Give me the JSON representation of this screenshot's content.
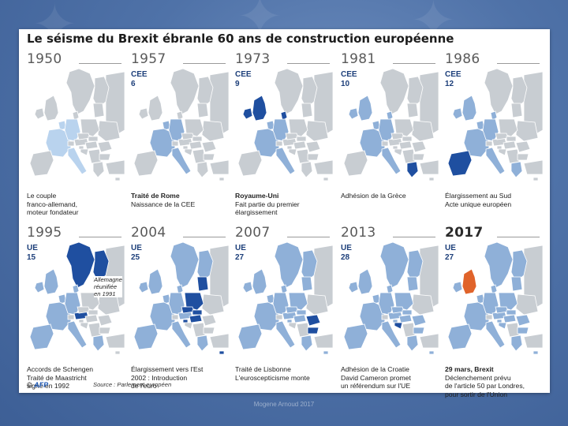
{
  "title": "Le séisme du Brexit ébranle 60 ans de construction européenne",
  "colors": {
    "non_member": "#c8cdd2",
    "member": "#8fb0d8",
    "new_member": "#1f4fa0",
    "founders_1950": "#b9d3ee",
    "leaving": "#e0632a",
    "border": "#ffffff"
  },
  "panels": [
    {
      "year": "1950",
      "count_label": "",
      "count": "",
      "caption": [
        "Le couple",
        "franco-allemand,",
        "moteur fondateur"
      ],
      "caption_bold_line": false,
      "highlight": "founders"
    },
    {
      "year": "1957",
      "count_label": "CEE",
      "count": "6",
      "caption": [
        "Traité de Rome",
        "Naissance de la CEE"
      ],
      "caption_bold_line": true,
      "highlight": "none"
    },
    {
      "year": "1973",
      "count_label": "CEE",
      "count": "9",
      "caption": [
        "Royaume-Uni",
        "Fait partie du premier",
        "élargissement"
      ],
      "caption_bold_line": true,
      "highlight": "uk_ie_dk"
    },
    {
      "year": "1981",
      "count_label": "CEE",
      "count": "10",
      "caption": [
        "Adhésion de la Grèce"
      ],
      "caption_bold_line": false,
      "highlight": "greece"
    },
    {
      "year": "1986",
      "count_label": "CEE",
      "count": "12",
      "caption": [
        "Élargissement au Sud",
        "Acte unique européen"
      ],
      "caption_bold_line": false,
      "highlight": "iberia"
    },
    {
      "year": "1995",
      "count_label": "UE",
      "count": "15",
      "caption": [
        "Accords de Schengen",
        "Traité de Maastricht",
        "signé en 1992"
      ],
      "caption_bold_line": false,
      "highlight": "nordic_at"
    },
    {
      "year": "2004",
      "count_label": "UE",
      "count": "25",
      "caption": [
        "Élargissement vers l'Est",
        "2002 : Introduction",
        "de l'euro"
      ],
      "caption_bold_line": false,
      "highlight": "east"
    },
    {
      "year": "2007",
      "count_label": "UE",
      "count": "27",
      "caption": [
        "Traité de Lisbonne",
        "L'euroscepticisme monte"
      ],
      "caption_bold_line": false,
      "highlight": "ro_bg"
    },
    {
      "year": "2013",
      "count_label": "UE",
      "count": "28",
      "caption": [
        "Adhésion de la Croatie",
        "David Cameron promet",
        "un référendum sur l'UE"
      ],
      "caption_bold_line": false,
      "highlight": "croatia"
    },
    {
      "year": "2017",
      "count_label": "UE",
      "count": "27",
      "caption": [
        "29 mars, Brexit",
        "Déclenchement prévu",
        "de l'article 50 par Londres,",
        "pour sortir de l'Union"
      ],
      "caption_bold_line": true,
      "highlight": "brexit"
    }
  ],
  "annotation": [
    "Allemagne",
    "réunifiée",
    "en 1991"
  ],
  "footer": {
    "copyright": "©",
    "logo": "AFP",
    "source": "Source : Parlement européen"
  },
  "watermark": "Mogene Arnoud 2017"
}
